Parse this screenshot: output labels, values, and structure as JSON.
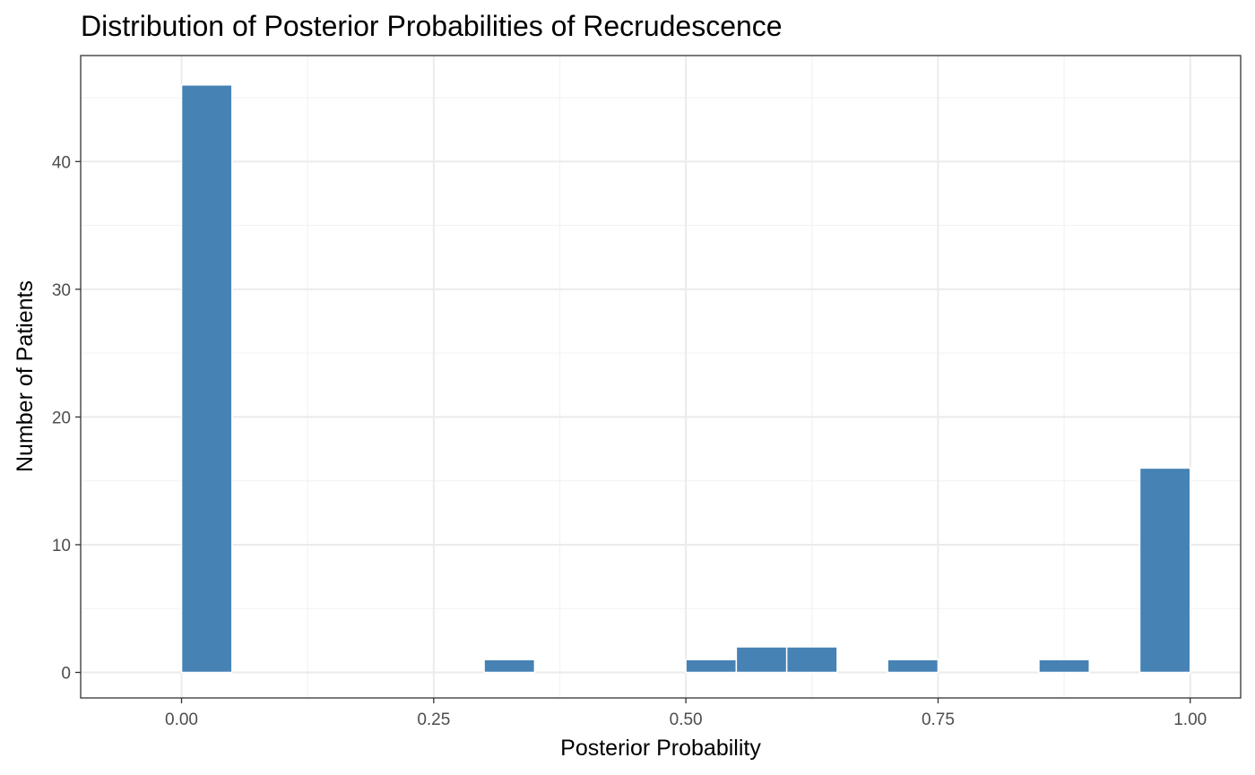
{
  "chart_data": {
    "type": "bar",
    "subtype": "histogram",
    "title": "Distribution of Posterior Probabilities of Recrudescence",
    "xlabel": "Posterior Probability",
    "ylabel": "Number of Patients",
    "xlim": [
      -0.1,
      1.05
    ],
    "ylim": [
      -2.0,
      48.3
    ],
    "x_ticks": [
      0,
      0.25,
      0.5,
      0.75,
      1.0
    ],
    "x_tick_labels": [
      "0.00",
      "0.25",
      "0.50",
      "0.75",
      "1.00"
    ],
    "y_ticks": [
      0,
      10,
      20,
      30,
      40
    ],
    "y_tick_labels": [
      "0",
      "10",
      "20",
      "30",
      "40"
    ],
    "bin_width": 0.05,
    "bins": [
      {
        "x_start": 0.0,
        "x_end": 0.05,
        "count": 46
      },
      {
        "x_start": 0.3,
        "x_end": 0.35,
        "count": 1
      },
      {
        "x_start": 0.5,
        "x_end": 0.55,
        "count": 1
      },
      {
        "x_start": 0.55,
        "x_end": 0.6,
        "count": 2
      },
      {
        "x_start": 0.6,
        "x_end": 0.65,
        "count": 2
      },
      {
        "x_start": 0.7,
        "x_end": 0.75,
        "count": 1
      },
      {
        "x_start": 0.85,
        "x_end": 0.9,
        "count": 1
      },
      {
        "x_start": 0.95,
        "x_end": 1.0,
        "count": 16
      }
    ],
    "bar_color": "#4682b4",
    "bar_outline": "#ffffff",
    "grid": true,
    "legend": "none"
  }
}
